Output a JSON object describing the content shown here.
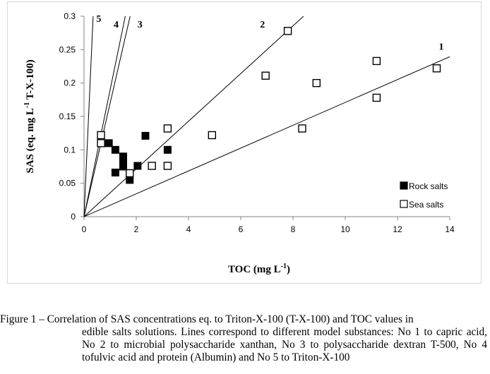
{
  "chart_data": {
    "type": "scatter",
    "xlabel": "TOC (mg L",
    "xlabel_sup": "-1",
    "xlabel_end": ")",
    "ylabel": "SAS (eq. mg L",
    "ylabel_sup": "-1",
    "ylabel_end": " T-X-100)",
    "xlim": [
      0,
      14
    ],
    "ylim": [
      0,
      0.3
    ],
    "xticks": [
      0,
      2,
      4,
      6,
      8,
      10,
      12,
      14
    ],
    "xtick_labels": [
      "0",
      "2",
      "4",
      "6",
      "8",
      "10",
      "12",
      "14"
    ],
    "yticks": [
      0,
      0.05,
      0.1,
      0.15,
      0.2,
      0.25,
      0.3
    ],
    "ytick_labels": [
      "0",
      "0.05",
      "0.1",
      "0.15",
      "0.2",
      "0.25",
      "0.3"
    ],
    "grid": false,
    "legend_position": "bottom-right",
    "series": [
      {
        "name": "Rock salts",
        "marker": "filled-square",
        "color": "#000000",
        "points": [
          [
            0.95,
            0.11
          ],
          [
            1.2,
            0.1
          ],
          [
            1.5,
            0.09
          ],
          [
            1.5,
            0.08
          ],
          [
            1.5,
            0.075
          ],
          [
            1.2,
            0.066
          ],
          [
            1.75,
            0.055
          ],
          [
            2.05,
            0.076
          ],
          [
            2.35,
            0.121
          ],
          [
            3.2,
            0.1
          ]
        ]
      },
      {
        "name": "Sea salts",
        "marker": "open-square",
        "color": "#000000",
        "points": [
          [
            0.65,
            0.122
          ],
          [
            0.65,
            0.11
          ],
          [
            1.75,
            0.065
          ],
          [
            2.6,
            0.076
          ],
          [
            3.2,
            0.076
          ],
          [
            3.2,
            0.132
          ],
          [
            4.9,
            0.122
          ],
          [
            6.95,
            0.211
          ],
          [
            7.8,
            0.278
          ],
          [
            8.35,
            0.132
          ],
          [
            8.9,
            0.2
          ],
          [
            11.2,
            0.233
          ],
          [
            11.2,
            0.178
          ],
          [
            13.5,
            0.222
          ]
        ]
      }
    ],
    "lines": [
      {
        "label": "1",
        "slope": 0.0171,
        "x_end": 14.0
      },
      {
        "label": "2",
        "slope": 0.0357,
        "x_end": 8.4
      },
      {
        "label": "3",
        "slope": 0.17,
        "x_end": 1.765
      },
      {
        "label": "4",
        "slope": 0.19,
        "x_end": 1.58
      },
      {
        "label": "5",
        "slope": 0.86,
        "x_end": 0.349
      }
    ]
  },
  "caption": {
    "title": "Figure 1 – Correlation of SAS concentrations eq. to Triton-X-100 (T-X-100) and TOC values in",
    "body": "edible salts solutions. Lines correspond to different model substances: No 1 to capric acid, No 2 to microbial polysaccharide xanthan, No 3 to polysaccharide dextran T-500, No 4 tofulvic acid and protein (Albumin) and No 5 to Triton-X-100"
  }
}
